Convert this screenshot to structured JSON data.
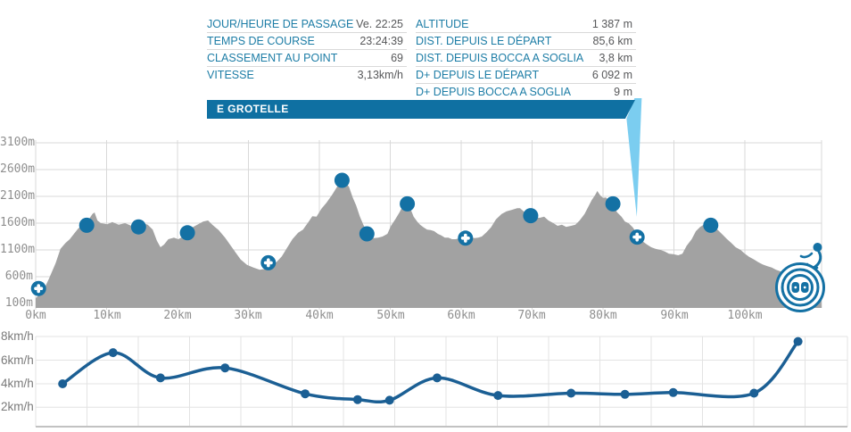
{
  "stats_left": {
    "rows": [
      {
        "label": "JOUR/HEURE DE PASSAGE",
        "value": "Ve. 22:25"
      },
      {
        "label": "TEMPS DE COURSE",
        "value": "23:24:39"
      },
      {
        "label": "CLASSEMENT AU POINT",
        "value": "69"
      },
      {
        "label": "VITESSE",
        "value": "3,13km/h"
      }
    ]
  },
  "stats_right": {
    "rows": [
      {
        "label": "ALTITUDE",
        "value": "1 387 m"
      },
      {
        "label": "DIST. DEPUIS LE DÉPART",
        "value": "85,6 km"
      },
      {
        "label": "DIST. DEPUIS BOCCA A SOGLIA",
        "value": "3,8 km"
      },
      {
        "label": "D+ DEPUIS LE DÉPART",
        "value": "6 092 m"
      },
      {
        "label": "D+ DEPUIS BOCCA A SOGLIA",
        "value": "9 m"
      }
    ]
  },
  "banner": {
    "label": "E GROTELLE"
  },
  "colors": {
    "accent": "#1471a4",
    "banner": "#0f70a2",
    "callout": "#7bcdf0",
    "area": "#a2a2a2",
    "grid": "#d9d9d9",
    "grid_light": "#e3e3e3",
    "axis": "#c2c2c2",
    "speed_line": "#1b5f94",
    "label_teal": "#1d7da6",
    "value_gray": "#57585a",
    "tick_gray": "#8f8f8f"
  },
  "chart_data": [
    {
      "type": "area",
      "title": "course elevation profile",
      "x_unit": "km",
      "y_unit": "m",
      "xlim": [
        0,
        110.8
      ],
      "ylim": [
        100,
        3100
      ],
      "yticks": [
        "3100m",
        "2600m",
        "2100m",
        "1600m",
        "1100m",
        "600m",
        "100m"
      ],
      "xticks": [
        "0km",
        "10km",
        "20km",
        "30km",
        "40km",
        "50km",
        "60km",
        "70km",
        "80km",
        "90km",
        "100km"
      ],
      "grid": true,
      "callout_km": 84.7,
      "profile": [
        [
          0,
          200
        ],
        [
          1,
          320
        ],
        [
          1.9,
          570
        ],
        [
          2.8,
          850
        ],
        [
          3.5,
          1120
        ],
        [
          4.2,
          1230
        ],
        [
          4.8,
          1300
        ],
        [
          5.4,
          1400
        ],
        [
          6,
          1500
        ],
        [
          6.9,
          1600
        ],
        [
          7.5,
          1670
        ],
        [
          8,
          1770
        ],
        [
          8.3,
          1800
        ],
        [
          8.7,
          1650
        ],
        [
          9.2,
          1600
        ],
        [
          10.1,
          1580
        ],
        [
          10.8,
          1620
        ],
        [
          11.7,
          1570
        ],
        [
          12.6,
          1600
        ],
        [
          13.5,
          1550
        ],
        [
          14.3,
          1570
        ],
        [
          15.1,
          1600
        ],
        [
          15.8,
          1570
        ],
        [
          16.5,
          1480
        ],
        [
          17.1,
          1270
        ],
        [
          17.6,
          1150
        ],
        [
          18.1,
          1200
        ],
        [
          18.7,
          1300
        ],
        [
          19.5,
          1330
        ],
        [
          20.1,
          1300
        ],
        [
          20.8,
          1350
        ],
        [
          21.4,
          1420
        ],
        [
          22.1,
          1520
        ],
        [
          22.9,
          1580
        ],
        [
          23.6,
          1630
        ],
        [
          24.3,
          1650
        ],
        [
          24.9,
          1570
        ],
        [
          25.8,
          1470
        ],
        [
          26.7,
          1330
        ],
        [
          27.4,
          1200
        ],
        [
          28.2,
          1050
        ],
        [
          28.9,
          920
        ],
        [
          29.8,
          820
        ],
        [
          30.7,
          770
        ],
        [
          31.6,
          730
        ],
        [
          32.5,
          750
        ],
        [
          33.2,
          800
        ],
        [
          34,
          880
        ],
        [
          34.7,
          980
        ],
        [
          35.5,
          1150
        ],
        [
          36.2,
          1300
        ],
        [
          37,
          1420
        ],
        [
          37.7,
          1480
        ],
        [
          38.5,
          1630
        ],
        [
          39,
          1730
        ],
        [
          39.6,
          1720
        ],
        [
          40.3,
          1870
        ],
        [
          41,
          1980
        ],
        [
          41.8,
          2130
        ],
        [
          42.5,
          2280
        ],
        [
          43.1,
          2370
        ],
        [
          43.6,
          2400
        ],
        [
          44.2,
          2270
        ],
        [
          44.7,
          2080
        ],
        [
          45.2,
          1930
        ],
        [
          45.7,
          1730
        ],
        [
          46.2,
          1570
        ],
        [
          46.7,
          1450
        ],
        [
          47.2,
          1350
        ],
        [
          47.7,
          1320
        ],
        [
          48.3,
          1330
        ],
        [
          48.9,
          1350
        ],
        [
          49.6,
          1400
        ],
        [
          50.1,
          1550
        ],
        [
          50.7,
          1670
        ],
        [
          51.3,
          1800
        ],
        [
          51.8,
          1930
        ],
        [
          52.2,
          2000
        ],
        [
          52.6,
          1950
        ],
        [
          52.9,
          1850
        ],
        [
          53.3,
          1720
        ],
        [
          53.8,
          1630
        ],
        [
          54.2,
          1570
        ],
        [
          54.7,
          1520
        ],
        [
          55.2,
          1480
        ],
        [
          55.7,
          1470
        ],
        [
          56.2,
          1450
        ],
        [
          56.7,
          1400
        ],
        [
          57.2,
          1370
        ],
        [
          57.7,
          1330
        ],
        [
          58.2,
          1330
        ],
        [
          58.7,
          1300
        ],
        [
          59.2,
          1300
        ],
        [
          59.9,
          1320
        ],
        [
          60.9,
          1320
        ],
        [
          61.4,
          1330
        ],
        [
          61.9,
          1320
        ],
        [
          62.4,
          1330
        ],
        [
          62.9,
          1350
        ],
        [
          63.5,
          1420
        ],
        [
          64.2,
          1520
        ],
        [
          64.9,
          1670
        ],
        [
          65.7,
          1770
        ],
        [
          66.4,
          1820
        ],
        [
          67.2,
          1850
        ],
        [
          67.9,
          1880
        ],
        [
          68.3,
          1880
        ],
        [
          68.8,
          1820
        ],
        [
          69.3,
          1770
        ],
        [
          69.8,
          1730
        ],
        [
          70.4,
          1700
        ],
        [
          71.1,
          1700
        ],
        [
          71.7,
          1720
        ],
        [
          72.3,
          1650
        ],
        [
          73,
          1600
        ],
        [
          73.6,
          1550
        ],
        [
          74.2,
          1570
        ],
        [
          74.8,
          1530
        ],
        [
          75.5,
          1550
        ],
        [
          76.1,
          1570
        ],
        [
          76.7,
          1650
        ],
        [
          77.4,
          1770
        ],
        [
          77.9,
          1900
        ],
        [
          78.4,
          2030
        ],
        [
          78.9,
          2130
        ],
        [
          79.2,
          2200
        ],
        [
          79.6,
          2120
        ],
        [
          80,
          2070
        ],
        [
          80.4,
          2080
        ],
        [
          80.9,
          2020
        ],
        [
          81.4,
          1950
        ],
        [
          82,
          1800
        ],
        [
          82.6,
          1720
        ],
        [
          83.1,
          1630
        ],
        [
          83.6,
          1600
        ],
        [
          84.2,
          1520
        ],
        [
          84.7,
          1420
        ],
        [
          85.2,
          1320
        ],
        [
          85.7,
          1250
        ],
        [
          86.2,
          1200
        ],
        [
          86.8,
          1150
        ],
        [
          87.4,
          1120
        ],
        [
          88.1,
          1100
        ],
        [
          88.7,
          1070
        ],
        [
          89.3,
          1030
        ],
        [
          89.9,
          1020
        ],
        [
          90.6,
          1000
        ],
        [
          91.2,
          1030
        ],
        [
          91.8,
          1180
        ],
        [
          92.5,
          1300
        ],
        [
          93.1,
          1450
        ],
        [
          93.7,
          1530
        ],
        [
          94.3,
          1580
        ],
        [
          95,
          1600
        ],
        [
          95.6,
          1550
        ],
        [
          96.2,
          1470
        ],
        [
          96.9,
          1380
        ],
        [
          97.5,
          1300
        ],
        [
          98.1,
          1230
        ],
        [
          98.7,
          1150
        ],
        [
          99.4,
          1100
        ],
        [
          100,
          1030
        ],
        [
          100.6,
          970
        ],
        [
          101.3,
          920
        ],
        [
          101.9,
          870
        ],
        [
          102.5,
          830
        ],
        [
          103.1,
          800
        ],
        [
          103.8,
          770
        ],
        [
          104.4,
          730
        ],
        [
          105,
          700
        ],
        [
          105.7,
          670
        ],
        [
          106.3,
          630
        ],
        [
          106.9,
          600
        ],
        [
          107.5,
          570
        ],
        [
          108.2,
          550
        ],
        [
          108.8,
          530
        ],
        [
          109.4,
          520
        ],
        [
          110.1,
          500
        ],
        [
          110.7,
          480
        ]
      ],
      "checkpoints": [
        {
          "km": 0.4,
          "alt": 380,
          "kind": "aid"
        },
        {
          "km": 7.2,
          "alt": 1560,
          "kind": "dot"
        },
        {
          "km": 14.5,
          "alt": 1530,
          "kind": "dot"
        },
        {
          "km": 21.4,
          "alt": 1420,
          "kind": "dot"
        },
        {
          "km": 32.8,
          "alt": 860,
          "kind": "aid"
        },
        {
          "km": 43.2,
          "alt": 2400,
          "kind": "dot"
        },
        {
          "km": 46.7,
          "alt": 1400,
          "kind": "dot"
        },
        {
          "km": 52.4,
          "alt": 1960,
          "kind": "dot"
        },
        {
          "km": 60.6,
          "alt": 1320,
          "kind": "aid"
        },
        {
          "km": 69.8,
          "alt": 1740,
          "kind": "dot"
        },
        {
          "km": 81.4,
          "alt": 1960,
          "kind": "dot"
        },
        {
          "km": 84.8,
          "alt": 1340,
          "kind": "aid",
          "current": true
        },
        {
          "km": 95.2,
          "alt": 1560,
          "kind": "dot"
        },
        {
          "km": 107.8,
          "alt": 400,
          "kind": "finish"
        }
      ]
    },
    {
      "type": "line",
      "title": "speed between checkpoints",
      "x_unit": "km",
      "y_unit": "km/h",
      "ylim": [
        0,
        8
      ],
      "yticks": [
        "8km/h",
        "6km/h",
        "4km/h",
        "2km/h"
      ],
      "grid": true,
      "points": [
        [
          3.8,
          4.0
        ],
        [
          10.9,
          6.65
        ],
        [
          17.6,
          4.5
        ],
        [
          26.7,
          5.35
        ],
        [
          38,
          3.15
        ],
        [
          45.4,
          2.65
        ],
        [
          49.9,
          2.6
        ],
        [
          56.6,
          4.5
        ],
        [
          65.2,
          3.0
        ],
        [
          75.5,
          3.2
        ],
        [
          83.1,
          3.1
        ],
        [
          89.9,
          3.25
        ],
        [
          101.3,
          3.2
        ],
        [
          107.5,
          7.6
        ]
      ]
    }
  ]
}
